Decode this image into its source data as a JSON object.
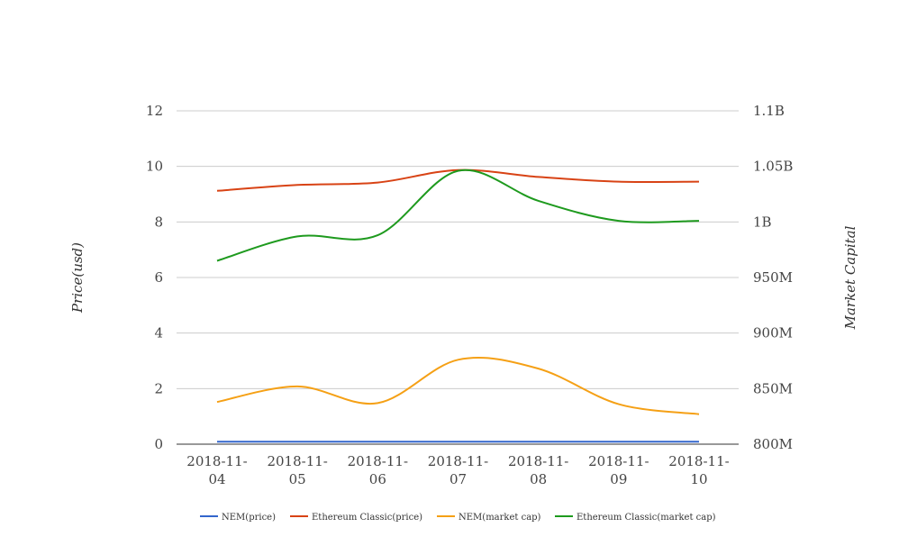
{
  "chart_data": {
    "type": "line",
    "categories": [
      "2018-11-04",
      "2018-11-05",
      "2018-11-06",
      "2018-11-07",
      "2018-11-08",
      "2018-11-09",
      "2018-11-10"
    ],
    "x_tick_labels": [
      [
        "2018-11-",
        "04"
      ],
      [
        "2018-11-",
        "05"
      ],
      [
        "2018-11-",
        "06"
      ],
      [
        "2018-11-",
        "07"
      ],
      [
        "2018-11-",
        "08"
      ],
      [
        "2018-11-",
        "09"
      ],
      [
        "2018-11-",
        "10"
      ]
    ],
    "ylabel": "Price(usd)",
    "y2label": "Market Capital",
    "ylim": [
      0,
      12
    ],
    "y2lim": [
      800000000,
      1100000000
    ],
    "y_ticks": [
      "0",
      "2",
      "4",
      "6",
      "8",
      "10",
      "12"
    ],
    "y2_ticks": [
      "800M",
      "850M",
      "900M",
      "950M",
      "1B",
      "1.05B",
      "1.1B"
    ],
    "grid": true,
    "legend_position": "bottom",
    "series": [
      {
        "name": "NEM(price)",
        "axis": "left",
        "color": "#3366cc",
        "values": [
          0.09,
          0.09,
          0.09,
          0.09,
          0.09,
          0.09,
          0.09
        ]
      },
      {
        "name": "Ethereum Classic(price)",
        "axis": "left",
        "color": "#d84315",
        "values": [
          9.12,
          9.33,
          9.42,
          9.87,
          9.62,
          9.45,
          9.45
        ]
      },
      {
        "name": "NEM(market cap)",
        "axis": "right",
        "color": "#f5a015",
        "values": [
          838000000,
          852000000,
          837000000,
          876000000,
          868000000,
          836000000,
          827000000
        ]
      },
      {
        "name": "Ethereum Classic(market cap)",
        "axis": "right",
        "color": "#1e9a1e",
        "values": [
          965000000,
          987000000,
          988000000,
          1046000000,
          1019000000,
          1001000000,
          1001000000
        ]
      }
    ]
  }
}
